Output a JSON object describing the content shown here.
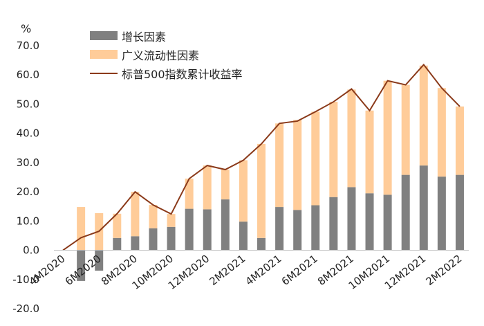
{
  "chart_data": {
    "type": "bar",
    "unit_label": "%",
    "ylim": [
      -20,
      70
    ],
    "yticks": [
      -20,
      -10,
      0,
      10,
      20,
      30,
      40,
      50,
      60,
      70
    ],
    "ytick_labels": [
      "-20.0",
      "-10.0",
      "0.0",
      "10.0",
      "20.0",
      "30.0",
      "40.0",
      "50.0",
      "60.0",
      "70.0"
    ],
    "categories": [
      "4M2020",
      "5M2020",
      "6M2020",
      "7M2020",
      "8M2020",
      "9M2020",
      "10M2020",
      "11M2020",
      "12M2020",
      "1M2021",
      "2M2021",
      "3M2021",
      "4M2021",
      "5M2021",
      "6M2021",
      "7M2021",
      "8M2021",
      "9M2021",
      "10M2021",
      "11M2021",
      "12M2021",
      "1M2022",
      "2M2022"
    ],
    "shown_xtick_labels": [
      "4M2020",
      "6M2020",
      "8M2020",
      "10M2020",
      "12M2020",
      "2M2021",
      "4M2021",
      "6M2021",
      "8M2021",
      "10M2021",
      "12M2021",
      "2M2022"
    ],
    "series": [
      {
        "name": "增长因素",
        "kind": "stacked-bar",
        "color": "#808080",
        "values": [
          0,
          -10.5,
          -7.0,
          4.2,
          4.8,
          7.5,
          8.0,
          14.2,
          14.0,
          17.4,
          9.8,
          4.2,
          14.8,
          13.8,
          15.4,
          18.2,
          21.6,
          19.5,
          19.0,
          25.8,
          29.0,
          25.2,
          25.8
        ]
      },
      {
        "name": "广义流动性因素",
        "kind": "stacked-bar",
        "color": "#FFCC99",
        "values": [
          0,
          14.8,
          12.7,
          8.3,
          15.2,
          8.0,
          4.4,
          10.3,
          15.0,
          10.2,
          21.0,
          32.2,
          28.6,
          30.8,
          32.0,
          32.6,
          33.4,
          28.3,
          39.0,
          30.8,
          34.2,
          30.3,
          23.4
        ]
      },
      {
        "name": "标普500指数累计收益率",
        "kind": "line",
        "color": "#8B3A1A",
        "values": [
          0,
          4.3,
          6.5,
          12.5,
          20.0,
          15.5,
          12.4,
          24.5,
          29.0,
          27.6,
          30.8,
          36.4,
          43.4,
          44.2,
          47.4,
          50.8,
          55.2,
          47.8,
          58.0,
          56.6,
          63.5,
          55.5,
          49.2
        ]
      }
    ],
    "legend_position": "top-left",
    "grid": false
  }
}
